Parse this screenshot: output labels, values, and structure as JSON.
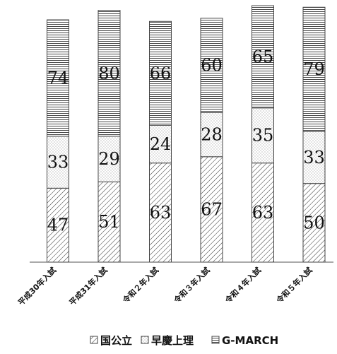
{
  "chart_data": {
    "type": "bar",
    "stacked": true,
    "categories": [
      "平成30年入試",
      "平成31年入試",
      "令和２年入試",
      "令和３年入試",
      "令和４年入試",
      "令和５年入試"
    ],
    "series": [
      {
        "name": "国公立",
        "pattern": "diagonal-hatch",
        "values": [
          47,
          51,
          63,
          67,
          63,
          50
        ]
      },
      {
        "name": "早慶上理",
        "pattern": "dots",
        "values": [
          33,
          29,
          24,
          28,
          35,
          33
        ]
      },
      {
        "name": "G-MARCH",
        "pattern": "horizontal-lines",
        "values": [
          74,
          80,
          66,
          60,
          65,
          79
        ]
      }
    ],
    "ylim": [
      0,
      163
    ],
    "grid": false,
    "legend_position": "bottom",
    "data_labels": true
  }
}
